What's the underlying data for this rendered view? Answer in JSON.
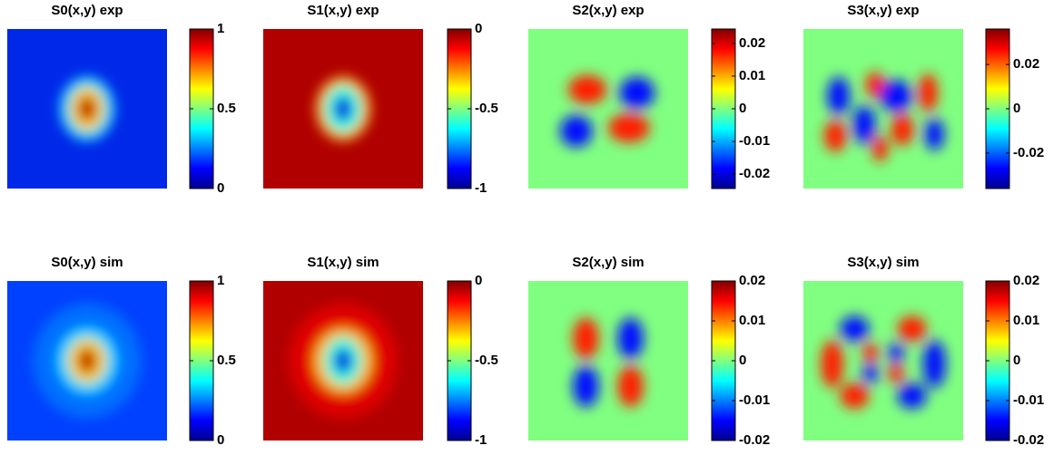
{
  "chart_data": [
    {
      "type": "heatmap",
      "title": "S0(x,y) exp",
      "colormap": "jet",
      "ylim": [
        0,
        1
      ],
      "yticks": [
        0,
        0.5,
        1
      ]
    },
    {
      "type": "heatmap",
      "title": "S1(x,y) exp",
      "colormap": "jet",
      "ylim": [
        -1,
        0
      ],
      "yticks": [
        -1,
        -0.5,
        0
      ]
    },
    {
      "type": "heatmap",
      "title": "S2(x,y) exp",
      "colormap": "jet",
      "ylim": [
        -0.0244,
        0.0244
      ],
      "yticks": [
        -0.02,
        -0.01,
        0,
        0.01,
        0.02
      ]
    },
    {
      "type": "heatmap",
      "title": "S3(x,y) exp",
      "colormap": "jet",
      "ylim": [
        -0.036,
        0.036
      ],
      "yticks": [
        -0.02,
        0,
        0.02
      ]
    },
    {
      "type": "heatmap",
      "title": "S0(x,y) sim",
      "colormap": "jet",
      "ylim": [
        0,
        1
      ],
      "yticks": [
        0,
        0.5,
        1
      ]
    },
    {
      "type": "heatmap",
      "title": "S1(x,y) sim",
      "colormap": "jet",
      "ylim": [
        -1,
        0
      ],
      "yticks": [
        -1,
        -0.5,
        0
      ]
    },
    {
      "type": "heatmap",
      "title": "S2(x,y) sim",
      "colormap": "jet",
      "ylim": [
        -0.02,
        0.02
      ],
      "yticks": [
        -0.02,
        -0.01,
        0,
        0.01,
        0.02
      ]
    },
    {
      "type": "heatmap",
      "title": "S3(x,y) sim",
      "colormap": "jet",
      "ylim": [
        -0.02,
        0.02
      ],
      "yticks": [
        -0.02,
        -0.01,
        0,
        0.01,
        0.02
      ]
    }
  ]
}
